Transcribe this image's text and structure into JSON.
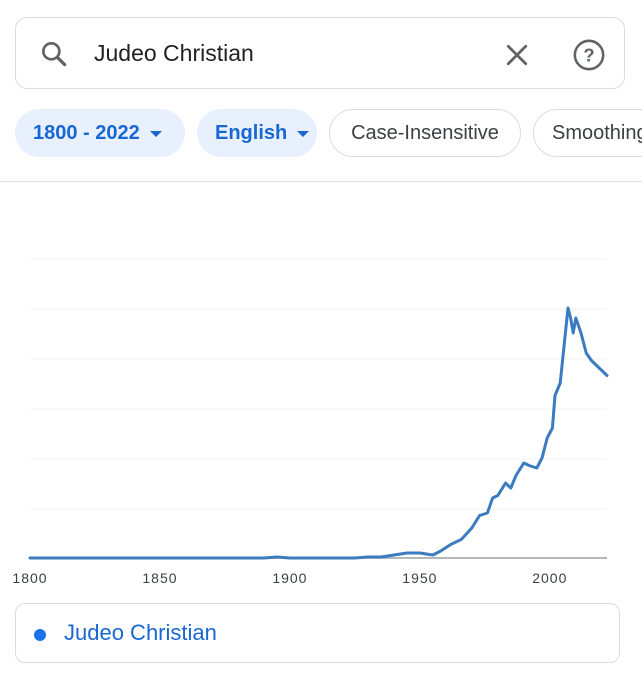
{
  "search": {
    "query": "Judeo Christian",
    "icon": "search-icon",
    "clear_icon": "close-icon",
    "help_icon": "help-icon"
  },
  "filters": {
    "date_range": "1800 - 2022",
    "corpus": "English",
    "case": "Case-Insensitive",
    "smoothing": "Smoothing"
  },
  "colors": {
    "accent": "#1a73e8",
    "line": "#3b7bbf",
    "chip_bg": "#e8f0fe"
  },
  "chart_data": {
    "type": "line",
    "title": "",
    "xlabel": "",
    "ylabel": "",
    "xlim": [
      1800,
      2022
    ],
    "ylim": [
      0,
      1
    ],
    "grid": true,
    "y_tick_labels_visible": false,
    "x_ticks": [
      "1800",
      "1850",
      "1900",
      "1950",
      "2000"
    ],
    "legend_position": "bottom",
    "series": [
      {
        "name": "Judeo Christian",
        "x": [
          1800,
          1890,
          1895,
          1900,
          1925,
          1930,
          1935,
          1940,
          1945,
          1950,
          1955,
          1958,
          1962,
          1966,
          1970,
          1973,
          1976,
          1978,
          1980,
          1983,
          1985,
          1987,
          1990,
          1992,
          1995,
          1997,
          1999,
          2001,
          2002,
          2004,
          2005,
          2006,
          2007,
          2008,
          2009,
          2010,
          2012,
          2014,
          2016,
          2018,
          2020,
          2022
        ],
        "y": [
          0.0,
          0.0,
          0.004,
          0.0,
          0.0,
          0.004,
          0.004,
          0.012,
          0.02,
          0.02,
          0.012,
          0.028,
          0.055,
          0.075,
          0.12,
          0.17,
          0.18,
          0.24,
          0.25,
          0.3,
          0.28,
          0.33,
          0.38,
          0.37,
          0.36,
          0.4,
          0.48,
          0.52,
          0.65,
          0.7,
          0.8,
          0.9,
          1.0,
          0.96,
          0.9,
          0.96,
          0.9,
          0.82,
          0.79,
          0.77,
          0.75,
          0.73
        ]
      }
    ]
  }
}
